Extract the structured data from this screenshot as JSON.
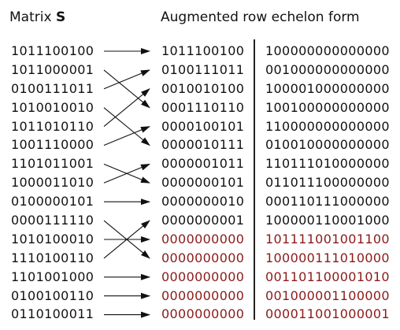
{
  "header": {
    "left_prefix": "Matrix ",
    "left_bold": "S",
    "right": "Augmented row echelon form"
  },
  "matrix_s": [
    "1011100100",
    "1011000001",
    "0100111011",
    "1010010010",
    "1011010110",
    "1001110000",
    "1101011001",
    "1000011010",
    "0100000101",
    "0000111110",
    "1010100010",
    "1110100110",
    "1101001000",
    "0100100110",
    "0110100011"
  ],
  "echelon": [
    "1011100100",
    "0100111011",
    "0010010100",
    "0001110110",
    "0000100101",
    "0000010111",
    "0000001011",
    "0000000101",
    "0000000010",
    "0000000001",
    "0000000000",
    "0000000000",
    "0000000000",
    "0000000000",
    "0000000000"
  ],
  "augment": [
    "100000000000000",
    "001000000000000",
    "100001000000000",
    "100100000000000",
    "110000000000000",
    "010010000000000",
    "110111010000000",
    "011011100000000",
    "000110111000000",
    "100000110001000",
    "101111001001100",
    "100000111010000",
    "001101100001010",
    "001000001100000",
    "000011001000001"
  ],
  "arrow_map": [
    0,
    3,
    1,
    5,
    2,
    4,
    7,
    6,
    8,
    11,
    10,
    9,
    12,
    13,
    14
  ],
  "zero_row_start": 10,
  "colors": {
    "text": "#111111",
    "zero_rows": "#8b1a1a",
    "arrow": "#111111"
  }
}
